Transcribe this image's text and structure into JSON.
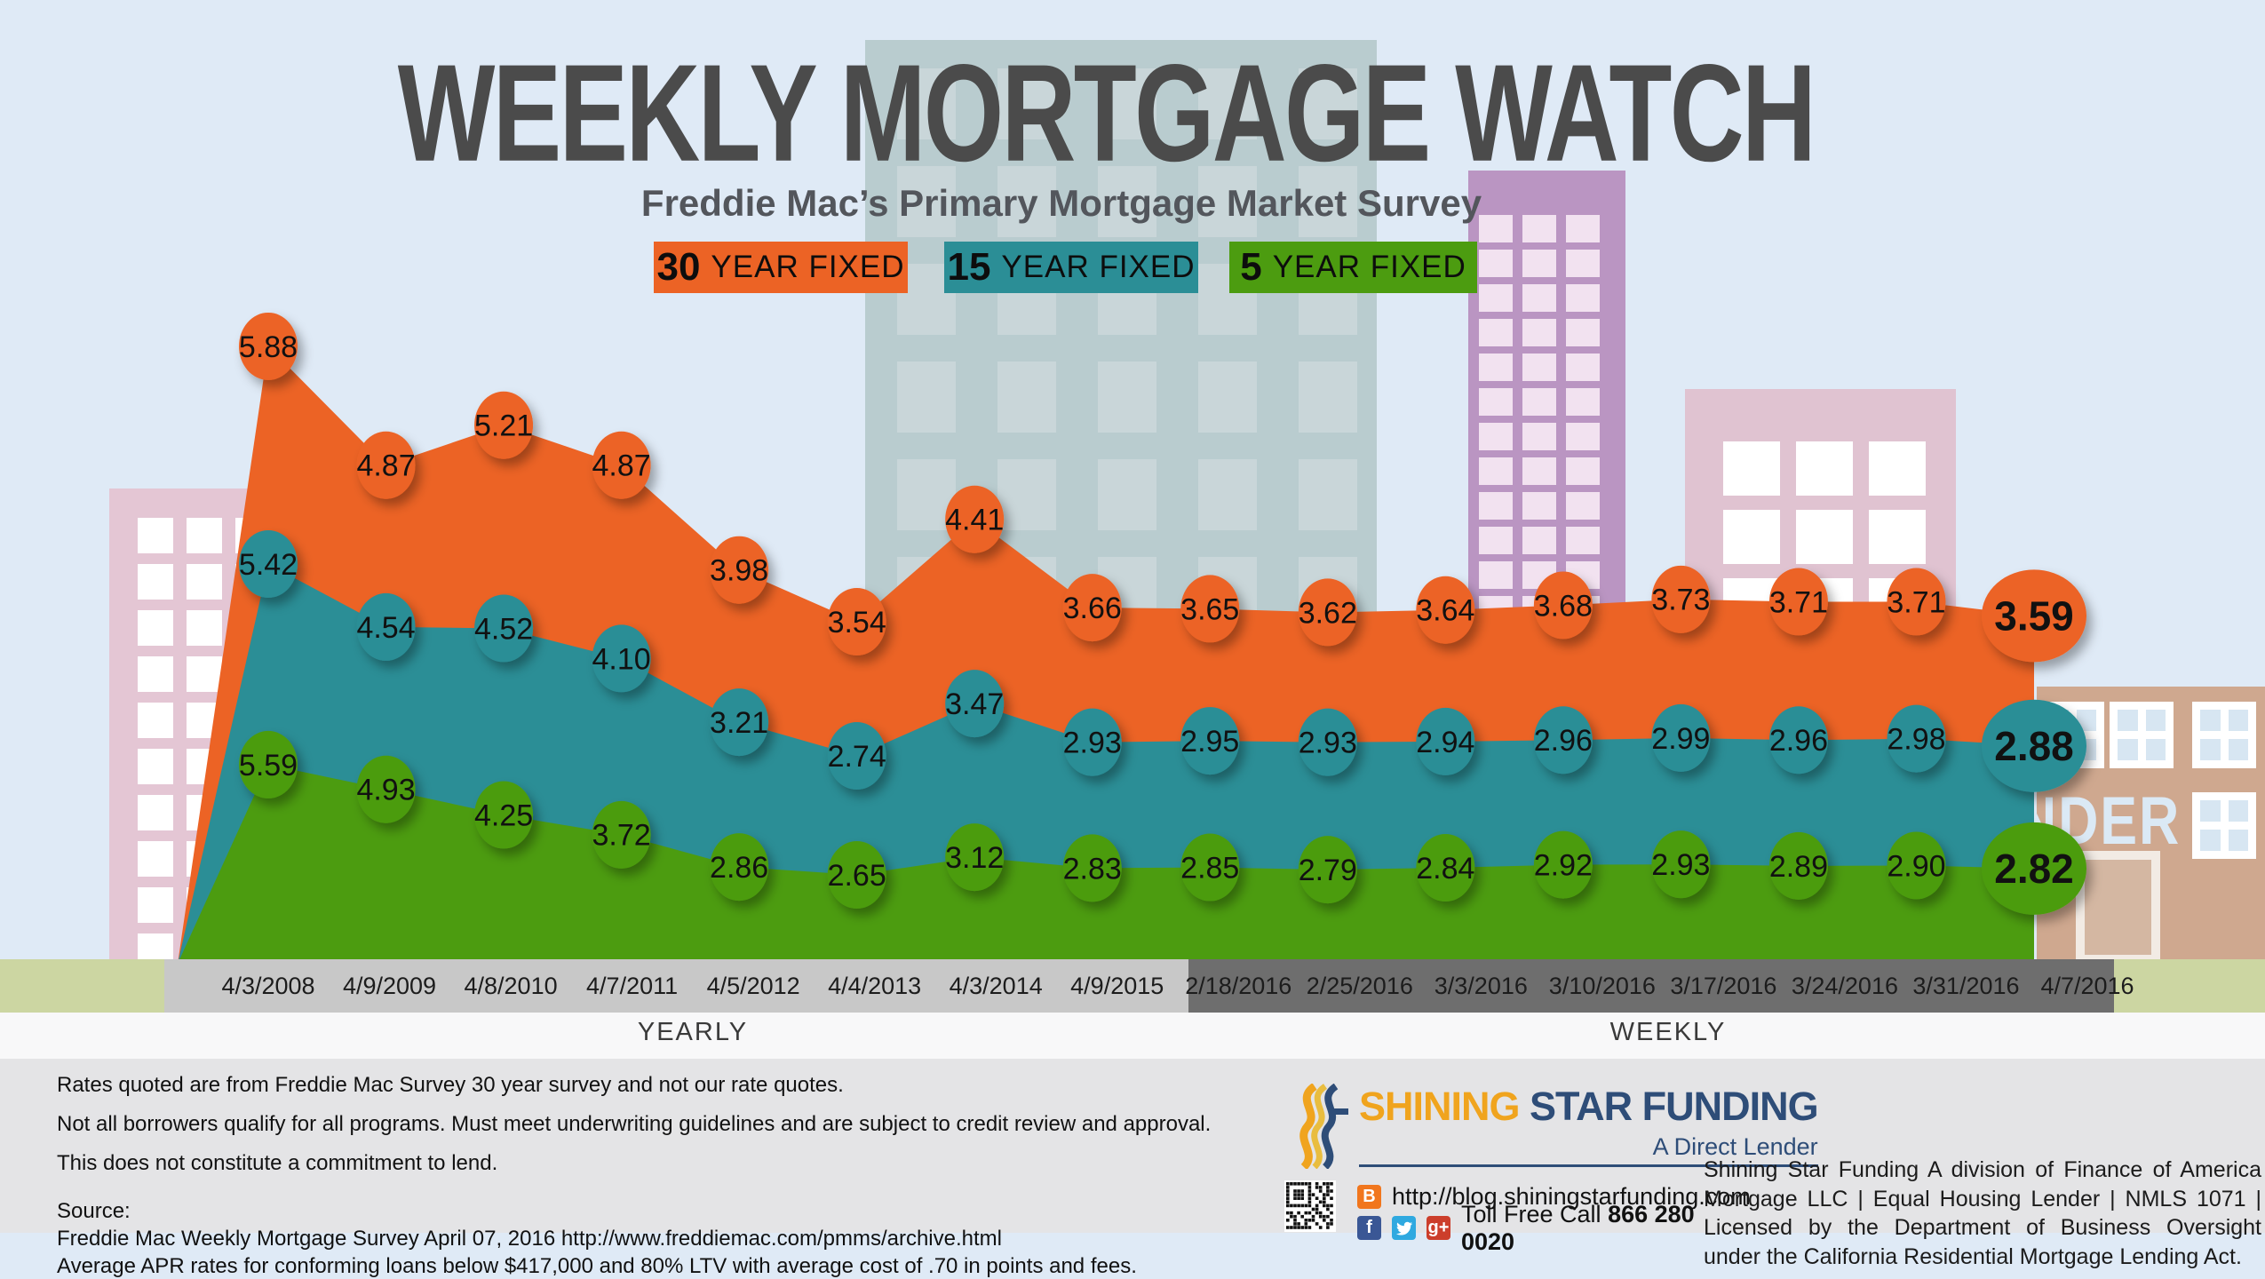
{
  "title": "WEEKLY MORTGAGE WATCH",
  "subtitle": "Freddie Mac’s Primary Mortgage Market Survey",
  "legend": [
    {
      "term": "30",
      "label": "YEAR FIXED",
      "color": "#ec6325"
    },
    {
      "term": "15",
      "label": "YEAR FIXED",
      "color": "#2b8e96"
    },
    {
      "term": "5",
      "label": "YEAR FIXED",
      "color": "#4c9c10"
    }
  ],
  "chart_data": {
    "type": "area",
    "categories": [
      "4/3/2008",
      "4/9/2009",
      "4/8/2010",
      "4/7/2011",
      "4/5/2012",
      "4/4/2013",
      "4/3/2014",
      "4/9/2015",
      "2/18/2016",
      "2/25/2016",
      "3/3/2016",
      "3/10/2016",
      "3/17/2016",
      "3/24/2016",
      "3/31/2016",
      "4/7/2016"
    ],
    "series": [
      {
        "name": "30 Year Fixed",
        "color": "#ec6325",
        "values": [
          "5.88",
          "4.87",
          "5.21",
          "4.87",
          "3.98",
          "3.54",
          "4.41",
          "3.66",
          "3.65",
          "3.62",
          "3.64",
          "3.68",
          "3.73",
          "3.71",
          "3.71",
          "3.59"
        ]
      },
      {
        "name": "15 Year Fixed",
        "color": "#2b8e96",
        "values": [
          "5.42",
          "4.54",
          "4.52",
          "4.10",
          "3.21",
          "2.74",
          "3.47",
          "2.93",
          "2.95",
          "2.93",
          "2.94",
          "2.96",
          "2.99",
          "2.96",
          "2.98",
          "2.88"
        ]
      },
      {
        "name": "5 Year Fixed",
        "color": "#4c9c10",
        "values": [
          "5.59",
          "4.93",
          "4.25",
          "3.72",
          "2.86",
          "2.65",
          "3.12",
          "2.83",
          "2.85",
          "2.79",
          "2.84",
          "2.92",
          "2.93",
          "2.89",
          "2.90",
          "2.82"
        ]
      }
    ],
    "axis_groups": [
      {
        "label": "YEARLY",
        "categories": 8
      },
      {
        "label": "WEEKLY",
        "categories": 8
      }
    ],
    "grid": false,
    "legend_position": "top",
    "value_labels": "on-point-bubbles"
  },
  "background": {
    "lender_sign": "LENDER"
  },
  "footer": {
    "disclaimers": [
      "Rates quoted are from Freddie Mac Survey 30 year survey and not our rate quotes.",
      "Not all borrowers qualify for all programs. Must meet underwriting guidelines and are subject to credit review and approval.",
      "This does not constitute a commitment to lend."
    ],
    "source_label": "Source:",
    "source_lines": [
      "Freddie Mac Weekly Mortgage Survey April 07, 2016 http://www.freddiemac.com/pmms/archive.html",
      "Average APR rates for conforming loans below $417,000 and 80% LTV with average cost of .70 in points and fees."
    ]
  },
  "brand": {
    "name_primary": "SHINING",
    "name_secondary": " STAR FUNDING",
    "tagline": "A Direct Lender",
    "blog_icon": {
      "name": "blogger-icon",
      "glyph": "B",
      "color": "#f1761d"
    },
    "blog_url": "http://blog.shiningstarfunding.com",
    "social_icons": [
      {
        "name": "facebook-icon",
        "glyph": "f",
        "color": "#3a5795"
      },
      {
        "name": "twitter-icon",
        "glyph": "bird",
        "color": "#2fa9e0"
      },
      {
        "name": "google-plus-icon",
        "glyph": "g+",
        "color": "#cc3e2b"
      }
    ],
    "phone_label": "Toll Free Call",
    "phone_number": "866 280 0020",
    "legal": "Shining Star Funding A division of Finance of America Mortgage LLC | Equal Housing Lender | NMLS 1071 | Licensed by the Department of Business Oversight under the California Residential Mortgage Lending Act.",
    "colors": {
      "gold": "#f0a41e",
      "navy": "#2e4d78"
    }
  }
}
